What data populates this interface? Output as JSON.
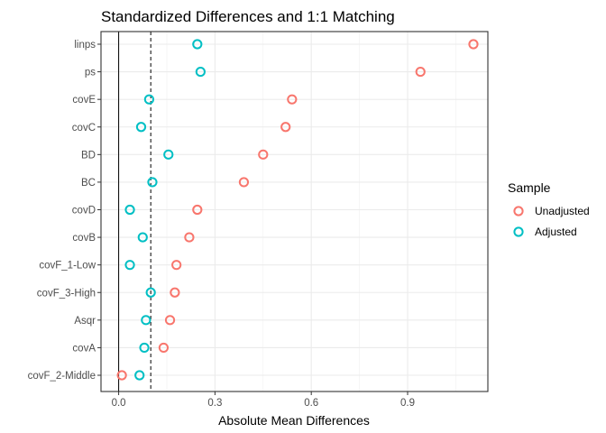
{
  "chart_data": {
    "type": "scatter",
    "title": "Standardized Differences and 1:1 Matching",
    "xlabel": "Absolute Mean Differences",
    "ylabel": "",
    "xlim": [
      -0.055,
      1.15
    ],
    "xticks": [
      0.0,
      0.3,
      0.6,
      0.9
    ],
    "xtick_labels": [
      "0.0",
      "0.3",
      "0.6",
      "0.9"
    ],
    "reference_lines": [
      {
        "x": 0,
        "style": "solid"
      },
      {
        "x": 0.1,
        "style": "dashed"
      }
    ],
    "categories": [
      "linps",
      "ps",
      "covE",
      "covC",
      "BD",
      "BC",
      "covD",
      "covB",
      "covF_1-Low",
      "covF_3-High",
      "Asqr",
      "covA",
      "covF_2-Middle"
    ],
    "series": [
      {
        "name": "Unadjusted",
        "color": "#F8766D",
        "values": [
          1.105,
          0.94,
          0.54,
          0.52,
          0.45,
          0.39,
          0.245,
          0.22,
          0.18,
          0.175,
          0.16,
          0.14,
          0.01
        ]
      },
      {
        "name": "Adjusted",
        "color": "#00BFC4",
        "values": [
          0.245,
          0.255,
          0.095,
          0.07,
          0.155,
          0.105,
          0.035,
          0.075,
          0.035,
          0.1,
          0.085,
          0.08,
          0.065
        ]
      }
    ],
    "legend": {
      "title": "Sample",
      "position": "right"
    },
    "grid": true,
    "marker": "open-circle"
  }
}
